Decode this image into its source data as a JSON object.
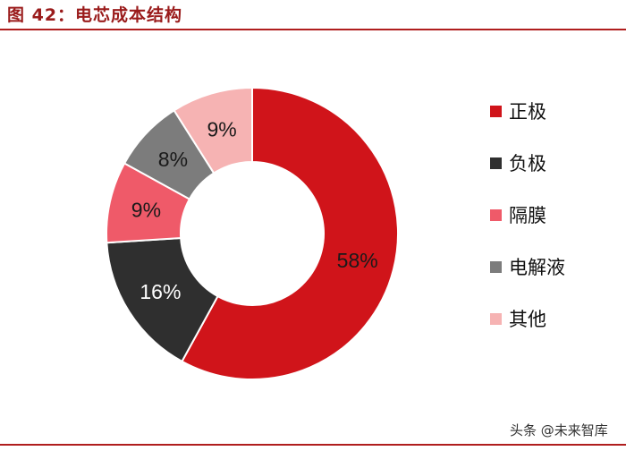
{
  "header": {
    "title": "图 42：电芯成本结构"
  },
  "watermark": {
    "text": "头条 @未来智库"
  },
  "chart_data": {
    "type": "pie",
    "variant": "donut",
    "title": "",
    "legend_position": "right",
    "start_angle": "12 o'clock, clockwise",
    "slices": [
      {
        "label": "正极",
        "value": 58,
        "display": "58%",
        "color": "#d0141a",
        "label_color": "#1a1a1a"
      },
      {
        "label": "负极",
        "value": 16,
        "display": "16%",
        "color": "#2f2f2f",
        "label_color": "#ffffff"
      },
      {
        "label": "隔膜",
        "value": 9,
        "display": "9%",
        "color": "#ef5a69",
        "label_color": "#1a1a1a"
      },
      {
        "label": "电解液",
        "value": 8,
        "display": "8%",
        "color": "#7c7c7c",
        "label_color": "#1a1a1a"
      },
      {
        "label": "其他",
        "value": 9,
        "display": "9%",
        "color": "#f6b3b3",
        "label_color": "#1a1a1a"
      }
    ]
  }
}
